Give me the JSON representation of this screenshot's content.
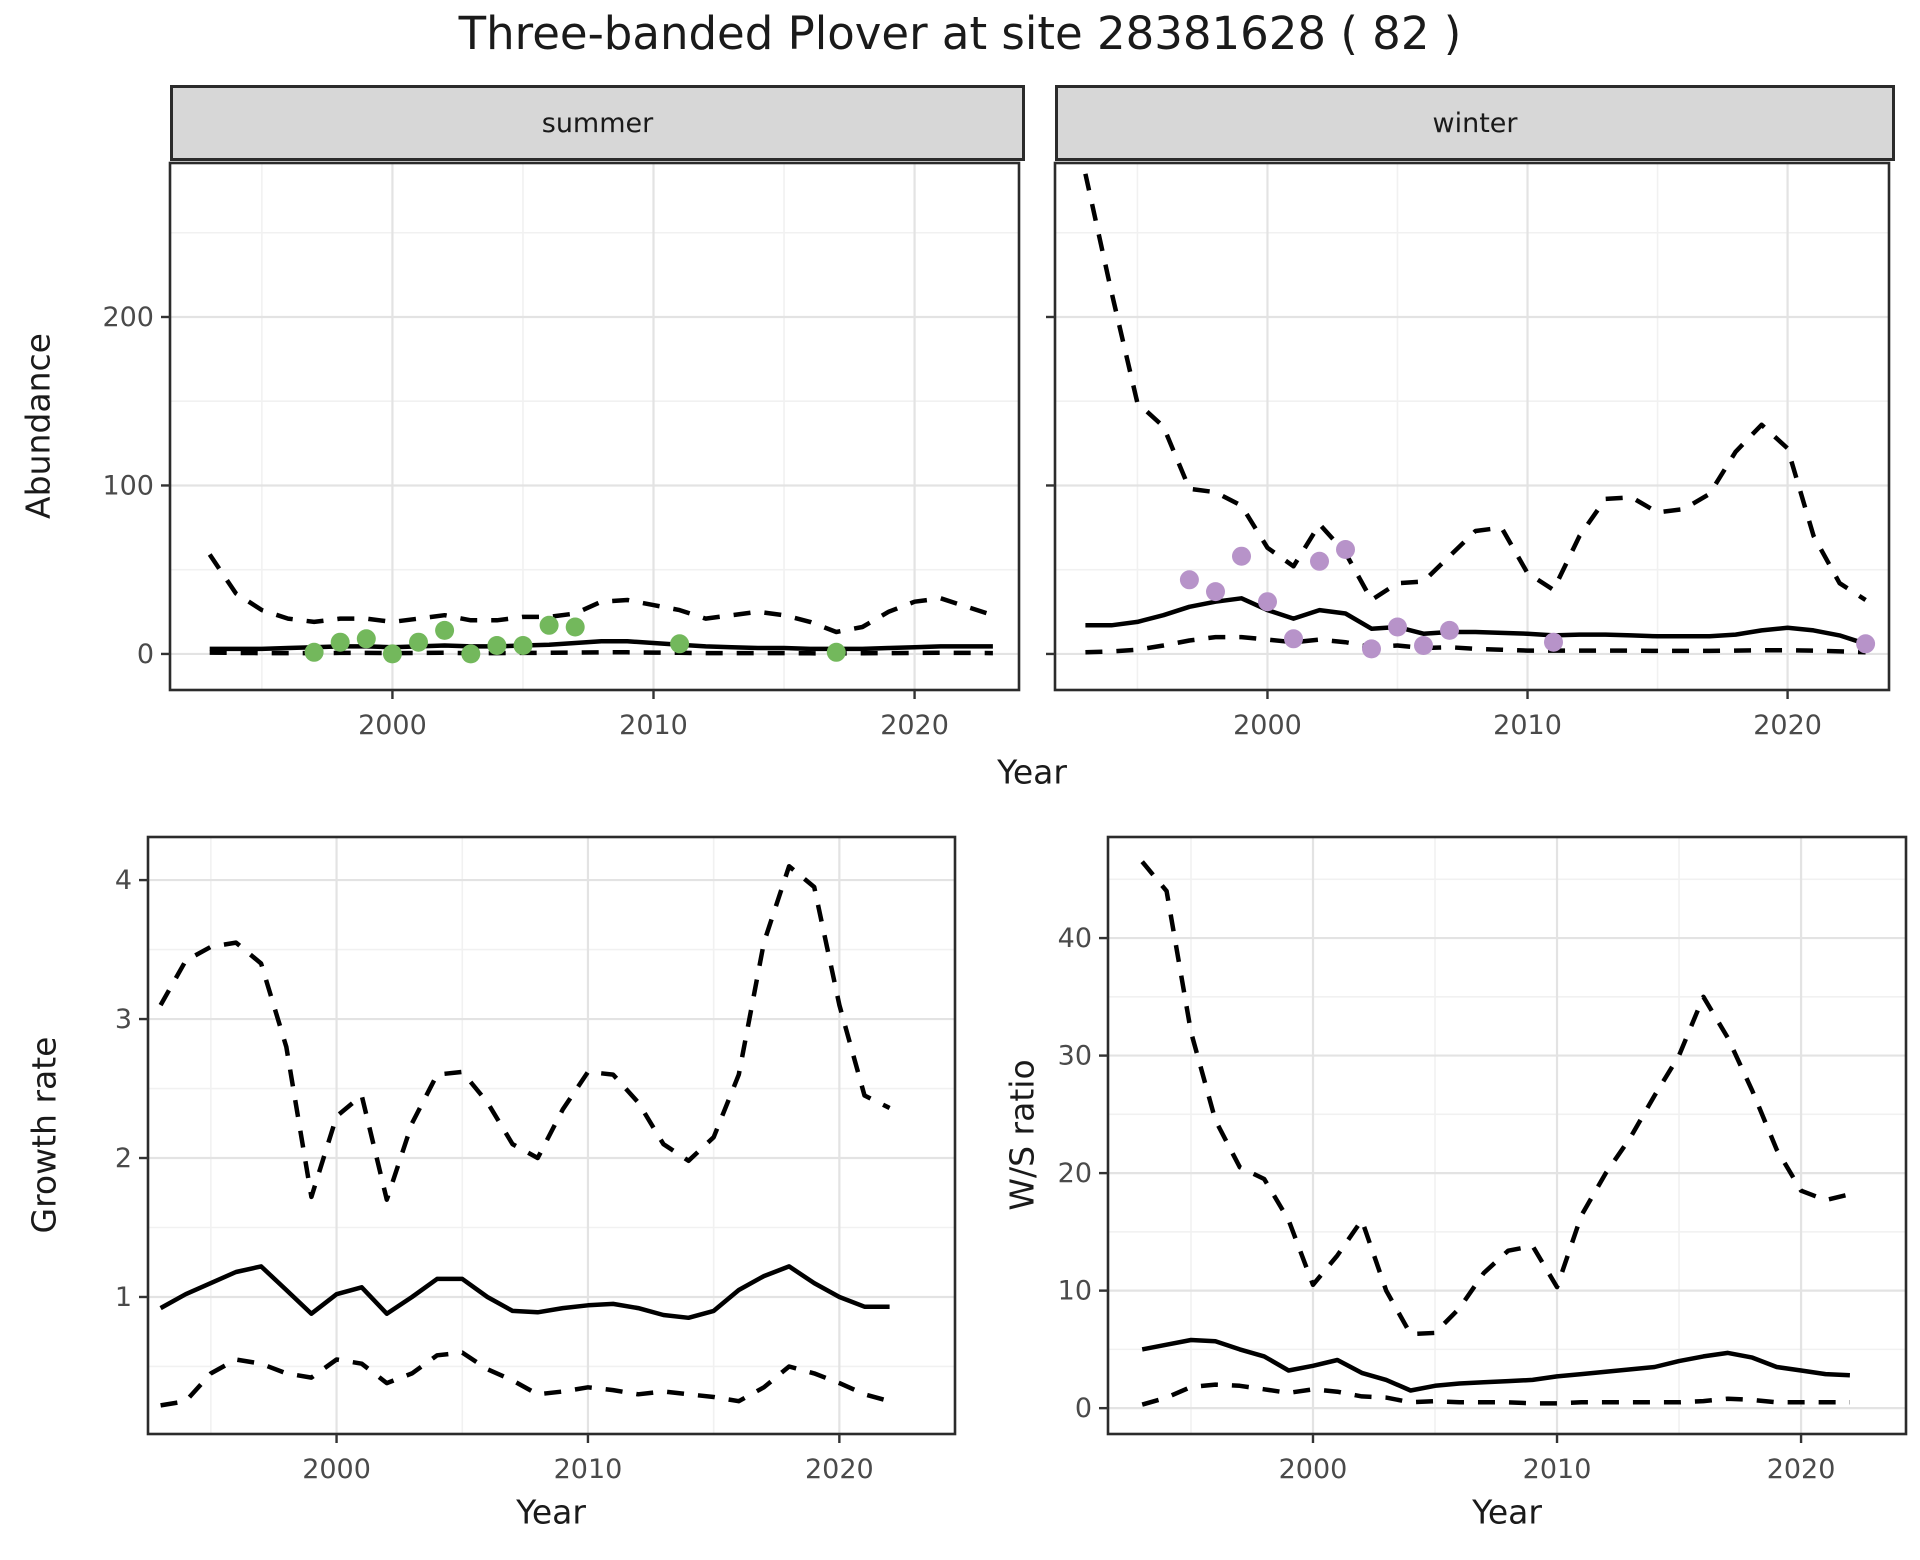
{
  "title": "Three-banded Plover at site 28381628 ( 82 )",
  "axes": {
    "x_label": "Year",
    "abundance_label": "Abundance",
    "growth_label": "Growth rate",
    "ratio_label": "W/S ratio"
  },
  "colors": {
    "observed_summer": "#73b85c",
    "observed_winter": "#b793c9",
    "median_line": "#000000",
    "ci_line": "#000000",
    "strip_bg": "#d7d7d7",
    "panel_border": "#2b2b2b",
    "grid_major": "#e3e3e3",
    "grid_minor": "#f1f1f1",
    "axis_text": "#4a4a4a",
    "tick_mark": "#333333"
  },
  "chart_data": [
    {
      "id": "summer",
      "type": "line",
      "title": "summer",
      "xlabel": "Year",
      "ylabel": "Abundance",
      "xlim": [
        1991.48,
        2024.0
      ],
      "ylim": [
        -21.4,
        291.4
      ],
      "xticks": [
        2000,
        2010,
        2020
      ],
      "xticks_minor": [
        1995,
        2005,
        2015
      ],
      "yticks": [
        0,
        100,
        200
      ],
      "yticks_minor": [
        50,
        150,
        250
      ],
      "x": [
        1993,
        1994,
        1995,
        1996,
        1997,
        1998,
        1999,
        2000,
        2001,
        2002,
        2003,
        2004,
        2005,
        2006,
        2007,
        2008,
        2009,
        2010,
        2011,
        2012,
        2013,
        2014,
        2015,
        2016,
        2017,
        2018,
        2019,
        2020,
        2021,
        2022,
        2023
      ],
      "series": [
        {
          "name": "upper_ci",
          "style": "dashed",
          "values": [
            59,
            36,
            26,
            21,
            19,
            21,
            21,
            19,
            21,
            23,
            20,
            20,
            22,
            22,
            24,
            31,
            32,
            29,
            26,
            21,
            23,
            25,
            23,
            19,
            13,
            16,
            25,
            31,
            33,
            28,
            23
          ]
        },
        {
          "name": "median",
          "style": "solid",
          "values": [
            3,
            3,
            3,
            3.5,
            4,
            4.5,
            4.5,
            4,
            4.5,
            5,
            4.5,
            4.5,
            5,
            5.5,
            6.5,
            7.5,
            7.5,
            6.5,
            5.5,
            4.5,
            4,
            3.5,
            3.5,
            3,
            3,
            3,
            3.5,
            4,
            4.5,
            4.5,
            4.5
          ]
        },
        {
          "name": "lower_ci",
          "style": "dashed",
          "values": [
            0.8,
            0.6,
            0.5,
            0.5,
            0.5,
            0.6,
            0.6,
            0.5,
            0.6,
            0.7,
            0.5,
            0.5,
            0.6,
            0.7,
            0.8,
            1,
            1,
            0.8,
            0.7,
            0.5,
            0.5,
            0.5,
            0.5,
            0.4,
            0.3,
            0.4,
            0.5,
            0.6,
            0.7,
            0.6,
            0.5
          ]
        }
      ],
      "points": {
        "name": "observed_counts",
        "color_key": "observed_summer",
        "x": [
          1997,
          1998,
          1999,
          2000,
          2001,
          2002,
          2003,
          2004,
          2005,
          2006,
          2007,
          2011,
          2017
        ],
        "y": [
          1,
          7,
          9,
          0,
          7,
          14,
          0,
          5,
          5,
          17,
          16,
          6,
          1
        ]
      }
    },
    {
      "id": "winter",
      "type": "line",
      "title": "winter",
      "xlabel": "Year",
      "ylabel": "Abundance",
      "xlim": [
        1991.83,
        2023.9
      ],
      "ylim": [
        -21.4,
        291.4
      ],
      "xticks": [
        2000,
        2010,
        2020
      ],
      "xticks_minor": [
        1995,
        2005,
        2015
      ],
      "yticks": [
        0,
        100,
        200
      ],
      "yticks_minor": [
        50,
        150,
        250
      ],
      "x": [
        1993,
        1994,
        1995,
        1996,
        1997,
        1998,
        1999,
        2000,
        2001,
        2002,
        2003,
        2004,
        2005,
        2006,
        2007,
        2008,
        2009,
        2010,
        2011,
        2012,
        2013,
        2014,
        2015,
        2016,
        2017,
        2018,
        2019,
        2020,
        2021,
        2022,
        2023
      ],
      "series": [
        {
          "name": "upper_ci",
          "style": "dashed",
          "values": [
            285,
            215,
            149,
            135,
            98,
            96,
            88,
            63,
            52,
            77,
            60,
            32,
            42,
            43,
            58,
            73,
            75,
            48,
            38,
            70,
            92,
            93,
            84,
            86,
            95,
            120,
            136,
            122,
            70,
            42,
            32
          ]
        },
        {
          "name": "median",
          "style": "solid",
          "values": [
            17,
            17,
            19,
            23,
            28,
            31,
            33,
            26,
            21,
            26,
            24,
            15,
            16,
            12,
            13,
            13,
            12.5,
            12,
            11,
            11.5,
            11.5,
            11,
            10.5,
            10.5,
            10.5,
            11.5,
            14,
            15.5,
            14,
            11,
            6
          ]
        },
        {
          "name": "lower_ci",
          "style": "dashed",
          "values": [
            1,
            1.5,
            2.5,
            5,
            8,
            10,
            10,
            8.5,
            7,
            8.5,
            7,
            4,
            5,
            3.5,
            4,
            3,
            2.5,
            2,
            2,
            2,
            2,
            2,
            1.8,
            1.8,
            1.8,
            2,
            2.2,
            2.2,
            2,
            1.5,
            1
          ]
        }
      ],
      "points": {
        "name": "observed_counts",
        "color_key": "observed_winter",
        "x": [
          1997,
          1998,
          1999,
          2000,
          2001,
          2002,
          2003,
          2004,
          2005,
          2006,
          2007,
          2011,
          2023
        ],
        "y": [
          44,
          37,
          58,
          31,
          9,
          55,
          62,
          3,
          16,
          5,
          14,
          7,
          6
        ]
      }
    },
    {
      "id": "growth",
      "type": "line",
      "title": "",
      "xlabel": "Year",
      "ylabel": "Growth rate",
      "xlim": [
        1992.5,
        2024.6
      ],
      "ylim": [
        0.014,
        4.31
      ],
      "xticks": [
        2000,
        2010,
        2020
      ],
      "xticks_minor": [
        1995,
        2005,
        2015
      ],
      "yticks": [
        1,
        2,
        3,
        4
      ],
      "yticks_minor": [
        0.5,
        1.5,
        2.5,
        3.5
      ],
      "x": [
        1993,
        1994,
        1995,
        1996,
        1997,
        1998,
        1999,
        2000,
        2001,
        2002,
        2003,
        2004,
        2005,
        2006,
        2007,
        2008,
        2009,
        2010,
        2011,
        2012,
        2013,
        2014,
        2015,
        2016,
        2017,
        2018,
        2019,
        2020,
        2021,
        2022
      ],
      "series": [
        {
          "name": "upper_ci",
          "style": "dashed",
          "values": [
            3.1,
            3.42,
            3.52,
            3.55,
            3.4,
            2.8,
            1.72,
            2.3,
            2.45,
            1.7,
            2.25,
            2.6,
            2.62,
            2.4,
            2.1,
            2.0,
            2.35,
            2.62,
            2.6,
            2.4,
            2.1,
            1.98,
            2.15,
            2.6,
            3.55,
            4.1,
            3.95,
            3.1,
            2.45,
            2.36
          ]
        },
        {
          "name": "median",
          "style": "solid",
          "values": [
            0.92,
            1.02,
            1.1,
            1.18,
            1.22,
            1.05,
            0.88,
            1.02,
            1.07,
            0.88,
            1.0,
            1.13,
            1.13,
            1.0,
            0.9,
            0.89,
            0.92,
            0.94,
            0.95,
            0.92,
            0.87,
            0.85,
            0.9,
            1.05,
            1.15,
            1.22,
            1.1,
            1.0,
            0.93,
            0.93
          ]
        },
        {
          "name": "lower_ci",
          "style": "dashed",
          "values": [
            0.22,
            0.25,
            0.45,
            0.55,
            0.52,
            0.45,
            0.42,
            0.55,
            0.52,
            0.38,
            0.45,
            0.58,
            0.6,
            0.48,
            0.4,
            0.3,
            0.32,
            0.35,
            0.33,
            0.3,
            0.32,
            0.3,
            0.28,
            0.25,
            0.35,
            0.5,
            0.45,
            0.38,
            0.3,
            0.25
          ]
        }
      ]
    },
    {
      "id": "ratio",
      "type": "line",
      "title": "",
      "xlabel": "Year",
      "ylabel": "W/S ratio",
      "xlim": [
        1991.6,
        2024.3
      ],
      "ylim": [
        -2.2,
        48.6
      ],
      "xticks": [
        2000,
        2010,
        2020
      ],
      "xticks_minor": [
        1995,
        2005,
        2015
      ],
      "yticks": [
        0,
        10,
        20,
        30,
        40
      ],
      "yticks_minor": [
        5,
        15,
        25,
        35,
        45
      ],
      "x": [
        1993,
        1994,
        1995,
        1996,
        1997,
        1998,
        1999,
        2000,
        2001,
        2002,
        2003,
        2004,
        2005,
        2006,
        2007,
        2008,
        2009,
        2010,
        2011,
        2012,
        2013,
        2014,
        2015,
        2016,
        2017,
        2018,
        2019,
        2020,
        2021,
        2022
      ],
      "series": [
        {
          "name": "upper_ci",
          "style": "dashed",
          "values": [
            46.5,
            44,
            32,
            24.5,
            20.5,
            19.5,
            16,
            10.5,
            13,
            16,
            10,
            6.3,
            6.4,
            8.5,
            11.5,
            13.4,
            13.8,
            10.3,
            16.4,
            20,
            23,
            26.6,
            30,
            35,
            31.5,
            27,
            22,
            18.5,
            17.7,
            18.2
          ]
        },
        {
          "name": "median",
          "style": "solid",
          "values": [
            5.0,
            5.4,
            5.8,
            5.7,
            5.0,
            4.4,
            3.2,
            3.6,
            4.1,
            3.0,
            2.4,
            1.5,
            1.9,
            2.1,
            2.2,
            2.3,
            2.4,
            2.7,
            2.9,
            3.1,
            3.3,
            3.5,
            4.0,
            4.4,
            4.7,
            4.3,
            3.5,
            3.2,
            2.9,
            2.8
          ]
        },
        {
          "name": "lower_ci",
          "style": "dashed",
          "values": [
            0.3,
            0.9,
            1.8,
            2.0,
            1.9,
            1.6,
            1.3,
            1.6,
            1.4,
            1.0,
            0.9,
            0.5,
            0.6,
            0.5,
            0.5,
            0.5,
            0.4,
            0.4,
            0.5,
            0.5,
            0.5,
            0.5,
            0.5,
            0.6,
            0.8,
            0.7,
            0.5,
            0.5,
            0.5,
            0.5
          ]
        }
      ]
    }
  ]
}
